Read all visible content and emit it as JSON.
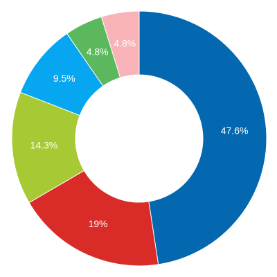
{
  "chart_data": {
    "type": "donut",
    "values": [
      47.6,
      19,
      14.3,
      9.5,
      4.8,
      4.8
    ],
    "value_labels": [
      "47.6%",
      "19%",
      "14.3%",
      "9.5%",
      "4.8%",
      "4.8%"
    ],
    "colors": [
      "#0468b0",
      "#d92b27",
      "#a6c934",
      "#06a6f0",
      "#5cb85c",
      "#f7b3b8"
    ]
  }
}
